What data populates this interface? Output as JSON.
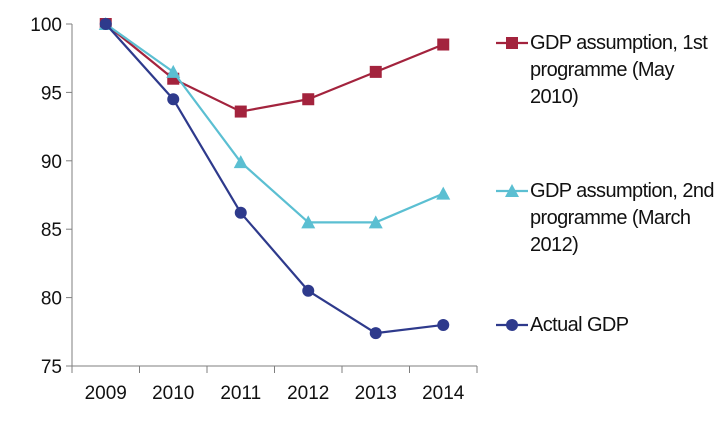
{
  "chart_data": {
    "type": "line",
    "categories": [
      "2009",
      "2010",
      "2011",
      "2012",
      "2013",
      "2014"
    ],
    "ylim": [
      75,
      100
    ],
    "yticks": [
      "75",
      "80",
      "85",
      "90",
      "95",
      "100"
    ],
    "grid": false,
    "legend_position": "right",
    "series": [
      {
        "name": "GDP assumption, 1st programme (May 2010)",
        "color": "#a3233d",
        "marker": "square",
        "values": [
          100,
          96,
          93.6,
          94.5,
          96.5,
          98.5
        ]
      },
      {
        "name": "GDP assumption, 2nd programme (March 2012)",
        "color": "#5bbfd2",
        "marker": "triangle",
        "values": [
          100,
          96.5,
          89.9,
          85.5,
          85.5,
          87.6
        ]
      },
      {
        "name": "Actual GDP",
        "color": "#2e3a8c",
        "marker": "circle",
        "values": [
          100,
          94.5,
          86.2,
          80.5,
          77.4,
          78
        ]
      }
    ]
  }
}
